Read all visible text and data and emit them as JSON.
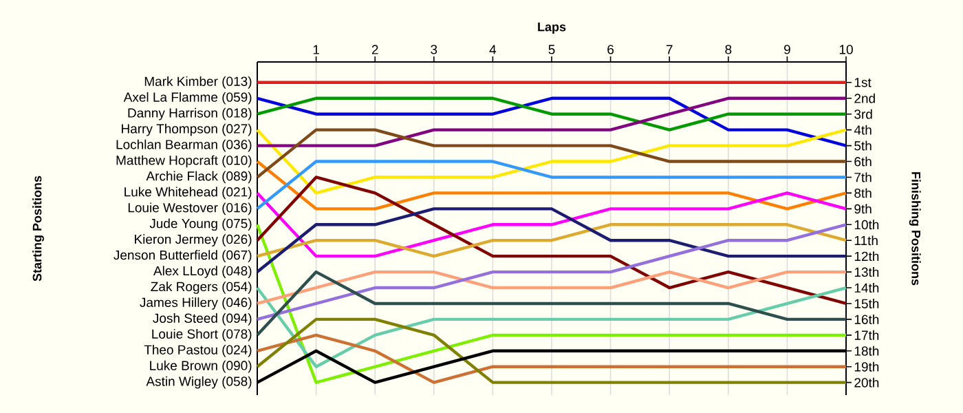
{
  "chart_data": {
    "type": "line",
    "xlabel": "Laps",
    "ylabel": "Finishing Positions",
    "x": [
      0,
      1,
      2,
      3,
      4,
      5,
      6,
      7,
      8,
      9,
      10
    ],
    "xlim": [
      0,
      10
    ],
    "xticks": [
      1,
      2,
      3,
      4,
      5,
      6,
      7,
      8,
      9,
      10
    ],
    "ylim": [
      20.8,
      -0.3
    ],
    "yticks": [
      {
        "value": 1,
        "label": "1st"
      },
      {
        "value": 2,
        "label": "2nd"
      },
      {
        "value": 3,
        "label": "3rd"
      },
      {
        "value": 4,
        "label": "4th"
      },
      {
        "value": 5,
        "label": "5th"
      },
      {
        "value": 6,
        "label": "6th"
      },
      {
        "value": 7,
        "label": "7th"
      },
      {
        "value": 8,
        "label": "8th"
      },
      {
        "value": 9,
        "label": "9th"
      },
      {
        "value": 10,
        "label": "10th"
      },
      {
        "value": 11,
        "label": "11th"
      },
      {
        "value": 12,
        "label": "12th"
      },
      {
        "value": 13,
        "label": "13th"
      },
      {
        "value": 14,
        "label": "14th"
      },
      {
        "value": 15,
        "label": "15th"
      },
      {
        "value": 16,
        "label": "16th"
      },
      {
        "value": 17,
        "label": "17th"
      },
      {
        "value": 18,
        "label": "18th"
      },
      {
        "value": 19,
        "label": "19th"
      },
      {
        "value": 20,
        "label": "20th"
      }
    ],
    "annotations": [
      "Starting Positions"
    ],
    "grid": "x",
    "marker": "none",
    "legend": "left",
    "series": [
      {
        "name": "Mark Kimber (013)",
        "color": "#e02020",
        "values": [
          1,
          1,
          1,
          1,
          1,
          1,
          1,
          1,
          1,
          1,
          1
        ]
      },
      {
        "name": "Axel La Flamme (059)",
        "color": "#0000dd",
        "values": [
          2,
          3,
          3,
          3,
          3,
          2,
          2,
          2,
          4,
          4,
          5
        ]
      },
      {
        "name": "Danny Harrison (018)",
        "color": "#009900",
        "values": [
          3,
          2,
          2,
          2,
          2,
          3,
          3,
          4,
          3,
          3,
          3
        ]
      },
      {
        "name": "Harry Thompson (027)",
        "color": "#ffe800",
        "values": [
          4,
          8,
          7,
          7,
          7,
          6,
          6,
          5,
          5,
          5,
          4
        ]
      },
      {
        "name": "Lochlan Bearman (036)",
        "color": "#800080",
        "values": [
          5,
          5,
          5,
          4,
          4,
          4,
          4,
          3,
          2,
          2,
          2
        ]
      },
      {
        "name": "Matthew Hopcraft (010)",
        "color": "#ff8000",
        "values": [
          6,
          9,
          9,
          8,
          8,
          8,
          8,
          8,
          8,
          9,
          8
        ]
      },
      {
        "name": "Archie Flack (089)",
        "color": "#7f4a1a",
        "values": [
          7,
          4,
          4,
          5,
          5,
          5,
          5,
          6,
          6,
          6,
          6
        ]
      },
      {
        "name": "Luke Whitehead (021)",
        "color": "#ff00ff",
        "values": [
          8,
          12,
          12,
          11,
          10,
          10,
          9,
          9,
          9,
          8,
          9
        ]
      },
      {
        "name": "Louie Westover (016)",
        "color": "#3399ff",
        "values": [
          9,
          6,
          6,
          6,
          6,
          7,
          7,
          7,
          7,
          7,
          7
        ]
      },
      {
        "name": "Jude Young (075)",
        "color": "#80ee00",
        "values": [
          10,
          20,
          19,
          18,
          17,
          17,
          17,
          17,
          17,
          17,
          17
        ]
      },
      {
        "name": "Kieron Jermey (026)",
        "color": "#800000",
        "values": [
          11,
          7,
          8,
          10,
          12,
          12,
          12,
          14,
          13,
          14,
          15
        ]
      },
      {
        "name": "Jenson Butterfield (067)",
        "color": "#dcaa30",
        "values": [
          12,
          11,
          11,
          12,
          11,
          11,
          10,
          10,
          10,
          10,
          11
        ]
      },
      {
        "name": "Alex LLoyd (048)",
        "color": "#1c1c70",
        "values": [
          13,
          10,
          10,
          9,
          9,
          9,
          11,
          11,
          12,
          12,
          12
        ]
      },
      {
        "name": "Zak Rogers (054)",
        "color": "#66ccaa",
        "values": [
          14,
          19,
          17,
          16,
          16,
          16,
          16,
          16,
          16,
          15,
          14
        ]
      },
      {
        "name": "James Hillery (046)",
        "color": "#ffa07a",
        "values": [
          15,
          14,
          13,
          13,
          14,
          14,
          14,
          13,
          14,
          13,
          13
        ]
      },
      {
        "name": "Josh Steed (094)",
        "color": "#9370db",
        "values": [
          16,
          15,
          14,
          14,
          13,
          13,
          13,
          12,
          11,
          11,
          10
        ]
      },
      {
        "name": "Louie Short (078)",
        "color": "#2f4f4f",
        "values": [
          17,
          13,
          15,
          15,
          15,
          15,
          15,
          15,
          15,
          16,
          16
        ]
      },
      {
        "name": "Theo Pastou (024)",
        "color": "#cd7033",
        "values": [
          18,
          17,
          18,
          20,
          19,
          19,
          19,
          19,
          19,
          19,
          19
        ]
      },
      {
        "name": "Luke Brown (090)",
        "color": "#808000",
        "values": [
          19,
          16,
          16,
          17,
          20,
          20,
          20,
          20,
          20,
          20,
          20
        ]
      },
      {
        "name": "Astin Wigley (058)",
        "color": "#000000",
        "values": [
          20,
          18,
          20,
          19,
          18,
          18,
          18,
          18,
          18,
          18,
          18
        ]
      }
    ]
  }
}
